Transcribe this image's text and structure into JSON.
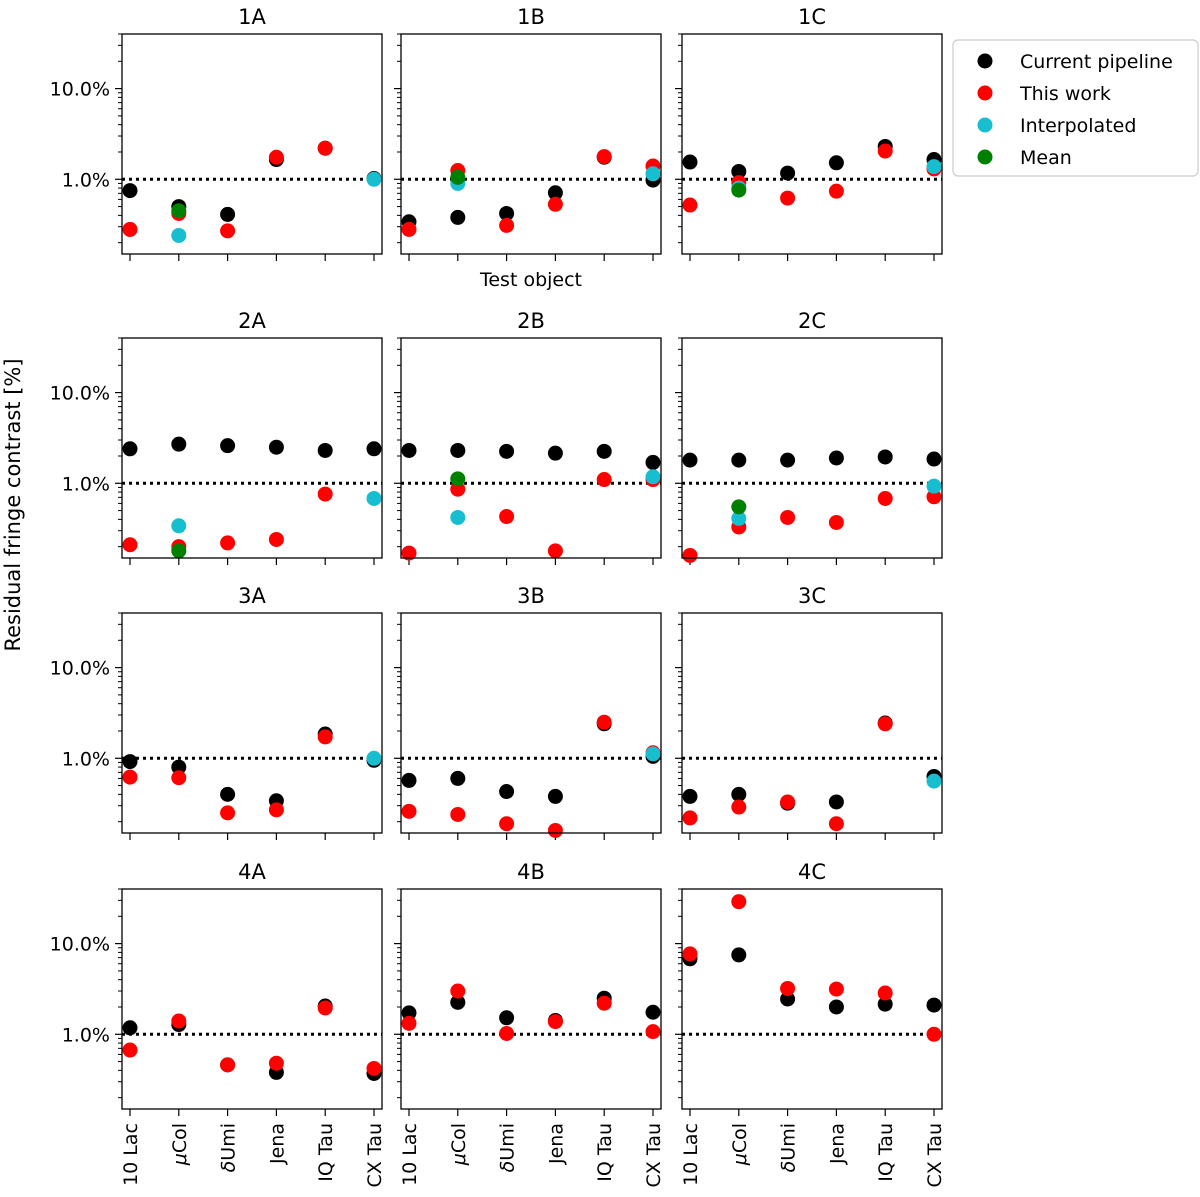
{
  "figure": {
    "ylabel": "Residual fringe contrast [%]",
    "xlabel": "Test object",
    "legend": {
      "placement": "right",
      "entries": [
        {
          "name": "Current pipeline",
          "color": "#000000"
        },
        {
          "name": "This work",
          "color": "#ff0000"
        },
        {
          "name": "Interpolated",
          "color": "#17becf"
        },
        {
          "name": "Mean",
          "color": "#008000"
        }
      ]
    }
  },
  "chart_data": {
    "type": "scatter",
    "yscale": "log",
    "ylim": [
      0.15,
      40
    ],
    "reference_line": 1.0,
    "categories": [
      "10 Lac",
      "μCol",
      "δUmi",
      "Jena",
      "IQ Tau",
      "CX Tau"
    ],
    "category_labels": [
      {
        "prefix": "",
        "italic": "",
        "rest": "10 Lac"
      },
      {
        "prefix": "",
        "italic": "μ",
        "rest": "Col"
      },
      {
        "prefix": "",
        "italic": "δ",
        "rest": "Umi"
      },
      {
        "prefix": "",
        "italic": "",
        "rest": "Jena"
      },
      {
        "prefix": "",
        "italic": "",
        "rest": "IQ Tau"
      },
      {
        "prefix": "",
        "italic": "",
        "rest": "CX Tau"
      }
    ],
    "yticks": [
      {
        "value": 1.0,
        "label": "1.0%"
      },
      {
        "value": 10.0,
        "label": "10.0%"
      }
    ],
    "panels": [
      {
        "title": "1A",
        "series": [
          {
            "name": "Current pipeline",
            "points": [
              [
                0,
                0.75
              ],
              [
                1,
                0.5
              ],
              [
                2,
                0.41
              ],
              [
                3,
                1.65
              ],
              [
                4,
                2.2
              ],
              [
                5,
                1.02
              ]
            ]
          },
          {
            "name": "This work",
            "points": [
              [
                0,
                0.28
              ],
              [
                1,
                0.42
              ],
              [
                2,
                0.27
              ],
              [
                3,
                1.75
              ],
              [
                4,
                2.2
              ]
            ]
          },
          {
            "name": "Interpolated",
            "points": [
              [
                1,
                0.24
              ],
              [
                5,
                1.0
              ]
            ]
          },
          {
            "name": "Mean",
            "points": [
              [
                1,
                0.45
              ]
            ]
          }
        ]
      },
      {
        "title": "1B",
        "series": [
          {
            "name": "Current pipeline",
            "points": [
              [
                0,
                0.34
              ],
              [
                1,
                0.38
              ],
              [
                2,
                0.42
              ],
              [
                3,
                0.71
              ],
              [
                4,
                1.75
              ],
              [
                5,
                0.98
              ]
            ]
          },
          {
            "name": "This work",
            "points": [
              [
                0,
                0.28
              ],
              [
                1,
                1.25
              ],
              [
                2,
                0.31
              ],
              [
                3,
                0.53
              ],
              [
                4,
                1.78
              ],
              [
                5,
                1.4
              ]
            ]
          },
          {
            "name": "Interpolated",
            "points": [
              [
                1,
                0.9
              ],
              [
                5,
                1.15
              ]
            ]
          },
          {
            "name": "Mean",
            "points": [
              [
                1,
                1.05
              ]
            ]
          }
        ]
      },
      {
        "title": "1C",
        "series": [
          {
            "name": "Current pipeline",
            "points": [
              [
                0,
                1.55
              ],
              [
                1,
                1.22
              ],
              [
                2,
                1.17
              ],
              [
                3,
                1.52
              ],
              [
                4,
                2.3
              ],
              [
                5,
                1.65
              ]
            ]
          },
          {
            "name": "This work",
            "points": [
              [
                0,
                0.52
              ],
              [
                1,
                0.92
              ],
              [
                2,
                0.62
              ],
              [
                3,
                0.74
              ],
              [
                4,
                2.05
              ],
              [
                5,
                1.3
              ]
            ]
          },
          {
            "name": "Interpolated",
            "points": [
              [
                1,
                0.8
              ],
              [
                5,
                1.38
              ]
            ]
          },
          {
            "name": "Mean",
            "points": [
              [
                1,
                0.76
              ]
            ]
          }
        ]
      },
      {
        "title": "2A",
        "series": [
          {
            "name": "Current pipeline",
            "points": [
              [
                0,
                2.4
              ],
              [
                1,
                2.7
              ],
              [
                2,
                2.6
              ],
              [
                3,
                2.5
              ],
              [
                4,
                2.3
              ],
              [
                5,
                2.4
              ]
            ]
          },
          {
            "name": "This work",
            "points": [
              [
                0,
                0.21
              ],
              [
                1,
                0.2
              ],
              [
                2,
                0.22
              ],
              [
                3,
                0.24
              ],
              [
                4,
                0.76
              ]
            ]
          },
          {
            "name": "Interpolated",
            "points": [
              [
                1,
                0.34
              ],
              [
                5,
                0.68
              ]
            ]
          },
          {
            "name": "Mean",
            "points": [
              [
                1,
                0.18
              ]
            ]
          }
        ]
      },
      {
        "title": "2B",
        "series": [
          {
            "name": "Current pipeline",
            "points": [
              [
                0,
                2.3
              ],
              [
                1,
                2.3
              ],
              [
                2,
                2.25
              ],
              [
                3,
                2.15
              ],
              [
                4,
                2.25
              ],
              [
                5,
                1.7
              ]
            ]
          },
          {
            "name": "This work",
            "points": [
              [
                0,
                0.17
              ],
              [
                1,
                0.86
              ],
              [
                2,
                0.43
              ],
              [
                3,
                0.18
              ],
              [
                4,
                1.1
              ],
              [
                5,
                1.1
              ]
            ]
          },
          {
            "name": "Interpolated",
            "points": [
              [
                1,
                0.42
              ],
              [
                5,
                1.18
              ]
            ]
          },
          {
            "name": "Mean",
            "points": [
              [
                1,
                1.12
              ]
            ]
          }
        ]
      },
      {
        "title": "2C",
        "series": [
          {
            "name": "Current pipeline",
            "points": [
              [
                0,
                1.8
              ],
              [
                1,
                1.8
              ],
              [
                2,
                1.8
              ],
              [
                3,
                1.9
              ],
              [
                4,
                1.95
              ],
              [
                5,
                1.85
              ]
            ]
          },
          {
            "name": "This work",
            "points": [
              [
                0,
                0.16
              ],
              [
                1,
                0.33
              ],
              [
                2,
                0.42
              ],
              [
                3,
                0.37
              ],
              [
                4,
                0.68
              ],
              [
                5,
                0.71
              ]
            ]
          },
          {
            "name": "Interpolated",
            "points": [
              [
                1,
                0.41
              ],
              [
                5,
                0.93
              ]
            ]
          },
          {
            "name": "Mean",
            "points": [
              [
                1,
                0.55
              ]
            ]
          }
        ]
      },
      {
        "title": "3A",
        "series": [
          {
            "name": "Current pipeline",
            "points": [
              [
                0,
                0.92
              ],
              [
                1,
                0.8
              ],
              [
                2,
                0.4
              ],
              [
                3,
                0.34
              ],
              [
                4,
                1.85
              ],
              [
                5,
                0.95
              ]
            ]
          },
          {
            "name": "This work",
            "points": [
              [
                0,
                0.62
              ],
              [
                1,
                0.61
              ],
              [
                2,
                0.25
              ],
              [
                3,
                0.27
              ],
              [
                4,
                1.72
              ]
            ]
          },
          {
            "name": "Interpolated",
            "points": [
              [
                5,
                1.0
              ]
            ]
          },
          {
            "name": "Mean",
            "points": []
          }
        ]
      },
      {
        "title": "3B",
        "series": [
          {
            "name": "Current pipeline",
            "points": [
              [
                0,
                0.57
              ],
              [
                1,
                0.6
              ],
              [
                2,
                0.43
              ],
              [
                3,
                0.38
              ],
              [
                4,
                2.4
              ],
              [
                5,
                1.05
              ]
            ]
          },
          {
            "name": "This work",
            "points": [
              [
                0,
                0.26
              ],
              [
                1,
                0.24
              ],
              [
                2,
                0.19
              ],
              [
                3,
                0.16
              ],
              [
                4,
                2.5
              ],
              [
                5,
                1.15
              ]
            ]
          },
          {
            "name": "Interpolated",
            "points": [
              [
                5,
                1.12
              ]
            ]
          },
          {
            "name": "Mean",
            "points": []
          }
        ]
      },
      {
        "title": "3C",
        "series": [
          {
            "name": "Current pipeline",
            "points": [
              [
                0,
                0.38
              ],
              [
                1,
                0.4
              ],
              [
                2,
                0.32
              ],
              [
                3,
                0.33
              ],
              [
                4,
                2.45
              ],
              [
                5,
                0.63
              ]
            ]
          },
          {
            "name": "This work",
            "points": [
              [
                0,
                0.22
              ],
              [
                1,
                0.29
              ],
              [
                2,
                0.33
              ],
              [
                3,
                0.19
              ],
              [
                4,
                2.4
              ]
            ]
          },
          {
            "name": "Interpolated",
            "points": [
              [
                5,
                0.56
              ]
            ]
          },
          {
            "name": "Mean",
            "points": []
          }
        ]
      },
      {
        "title": "4A",
        "series": [
          {
            "name": "Current pipeline",
            "points": [
              [
                0,
                1.18
              ],
              [
                1,
                1.28
              ],
              [
                2,
                0.46
              ],
              [
                3,
                0.38
              ],
              [
                4,
                2.05
              ],
              [
                5,
                0.37
              ]
            ]
          },
          {
            "name": "This work",
            "points": [
              [
                0,
                0.67
              ],
              [
                1,
                1.4
              ],
              [
                2,
                0.46
              ],
              [
                3,
                0.48
              ],
              [
                4,
                1.95
              ],
              [
                5,
                0.42
              ]
            ]
          },
          {
            "name": "Interpolated",
            "points": []
          },
          {
            "name": "Mean",
            "points": []
          }
        ]
      },
      {
        "title": "4B",
        "series": [
          {
            "name": "Current pipeline",
            "points": [
              [
                0,
                1.72
              ],
              [
                1,
                2.25
              ],
              [
                2,
                1.52
              ],
              [
                3,
                1.42
              ],
              [
                4,
                2.5
              ],
              [
                5,
                1.75
              ]
            ]
          },
          {
            "name": "This work",
            "points": [
              [
                0,
                1.32
              ],
              [
                1,
                3.0
              ],
              [
                2,
                1.02
              ],
              [
                3,
                1.38
              ],
              [
                4,
                2.2
              ],
              [
                5,
                1.07
              ]
            ]
          },
          {
            "name": "Interpolated",
            "points": []
          },
          {
            "name": "Mean",
            "points": []
          }
        ]
      },
      {
        "title": "4C",
        "series": [
          {
            "name": "Current pipeline",
            "points": [
              [
                0,
                6.8
              ],
              [
                1,
                7.5
              ],
              [
                2,
                2.45
              ],
              [
                3,
                2.0
              ],
              [
                4,
                2.15
              ],
              [
                5,
                2.1
              ]
            ]
          },
          {
            "name": "This work",
            "points": [
              [
                0,
                7.7
              ],
              [
                1,
                29.0
              ],
              [
                2,
                3.2
              ],
              [
                3,
                3.15
              ],
              [
                4,
                2.85
              ],
              [
                5,
                1.0
              ]
            ]
          },
          {
            "name": "Interpolated",
            "points": []
          },
          {
            "name": "Mean",
            "points": []
          }
        ]
      }
    ]
  }
}
